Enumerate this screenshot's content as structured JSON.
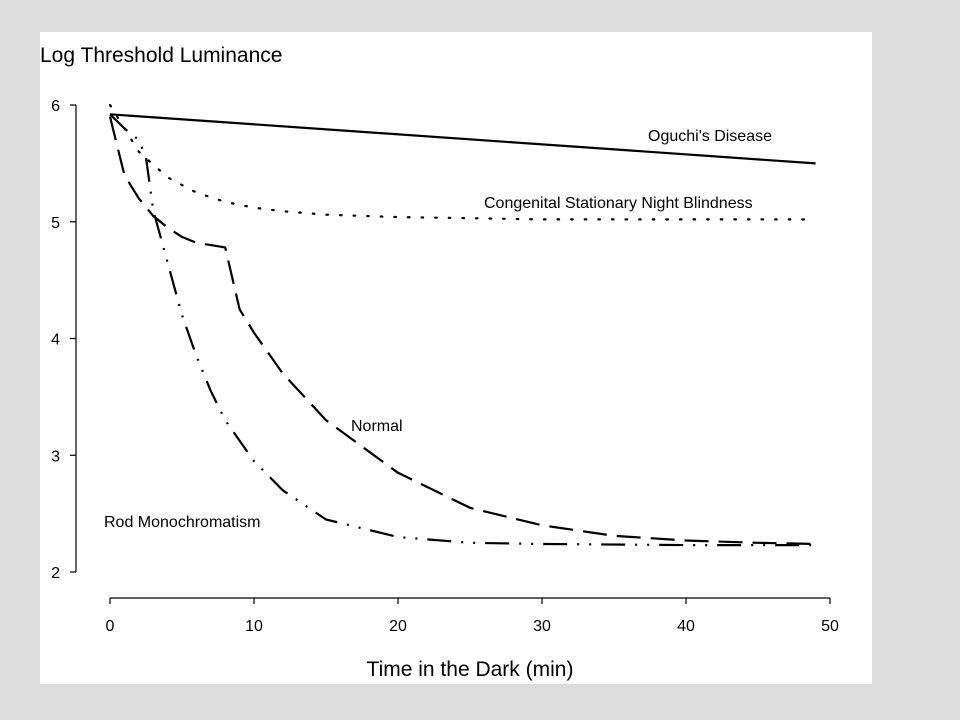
{
  "chart_data": {
    "type": "line",
    "title": "",
    "ylabel": "Log Threshold Luminance",
    "xlabel": "Time in the Dark (min)",
    "xlim": [
      0,
      50
    ],
    "ylim": [
      2,
      6
    ],
    "xticks": [
      0,
      10,
      20,
      30,
      40,
      50
    ],
    "yticks": [
      2,
      3,
      4,
      5,
      6
    ],
    "grid": false,
    "legend": "none",
    "series": [
      {
        "name": "Oguchi's Disease",
        "style": "solid",
        "color": "#000000",
        "x": [
          0,
          49
        ],
        "y": [
          5.92,
          5.5
        ]
      },
      {
        "name": "Congenital Stationary Night Blindness",
        "style": "dotted",
        "color": "#000000",
        "x": [
          0,
          2,
          4,
          6,
          8,
          10,
          12,
          15,
          20,
          25,
          30,
          40,
          49
        ],
        "y": [
          6.0,
          5.6,
          5.38,
          5.25,
          5.17,
          5.12,
          5.09,
          5.06,
          5.04,
          5.03,
          5.02,
          5.02,
          5.02
        ]
      },
      {
        "name": "Normal",
        "style": "long-dash",
        "color": "#000000",
        "x": [
          0,
          1,
          2,
          3,
          4,
          5,
          6,
          7,
          8,
          9,
          10,
          12,
          15,
          20,
          25,
          30,
          35,
          40,
          45,
          49
        ],
        "y": [
          5.9,
          5.4,
          5.2,
          5.05,
          4.95,
          4.87,
          4.82,
          4.8,
          4.78,
          4.25,
          4.05,
          3.7,
          3.3,
          2.85,
          2.55,
          2.4,
          2.31,
          2.27,
          2.25,
          2.24
        ]
      },
      {
        "name": "Rod Monochromatism",
        "style": "dash-dot-dot",
        "color": "#000000",
        "x": [
          0,
          1,
          2,
          2.5,
          3,
          4,
          5,
          6,
          7,
          8,
          10,
          12,
          15,
          20,
          25,
          30,
          40,
          49
        ],
        "y": [
          5.92,
          5.8,
          5.7,
          5.55,
          5.1,
          4.65,
          4.2,
          3.85,
          3.55,
          3.3,
          2.95,
          2.7,
          2.45,
          2.3,
          2.25,
          2.24,
          2.23,
          2.23
        ]
      }
    ]
  }
}
